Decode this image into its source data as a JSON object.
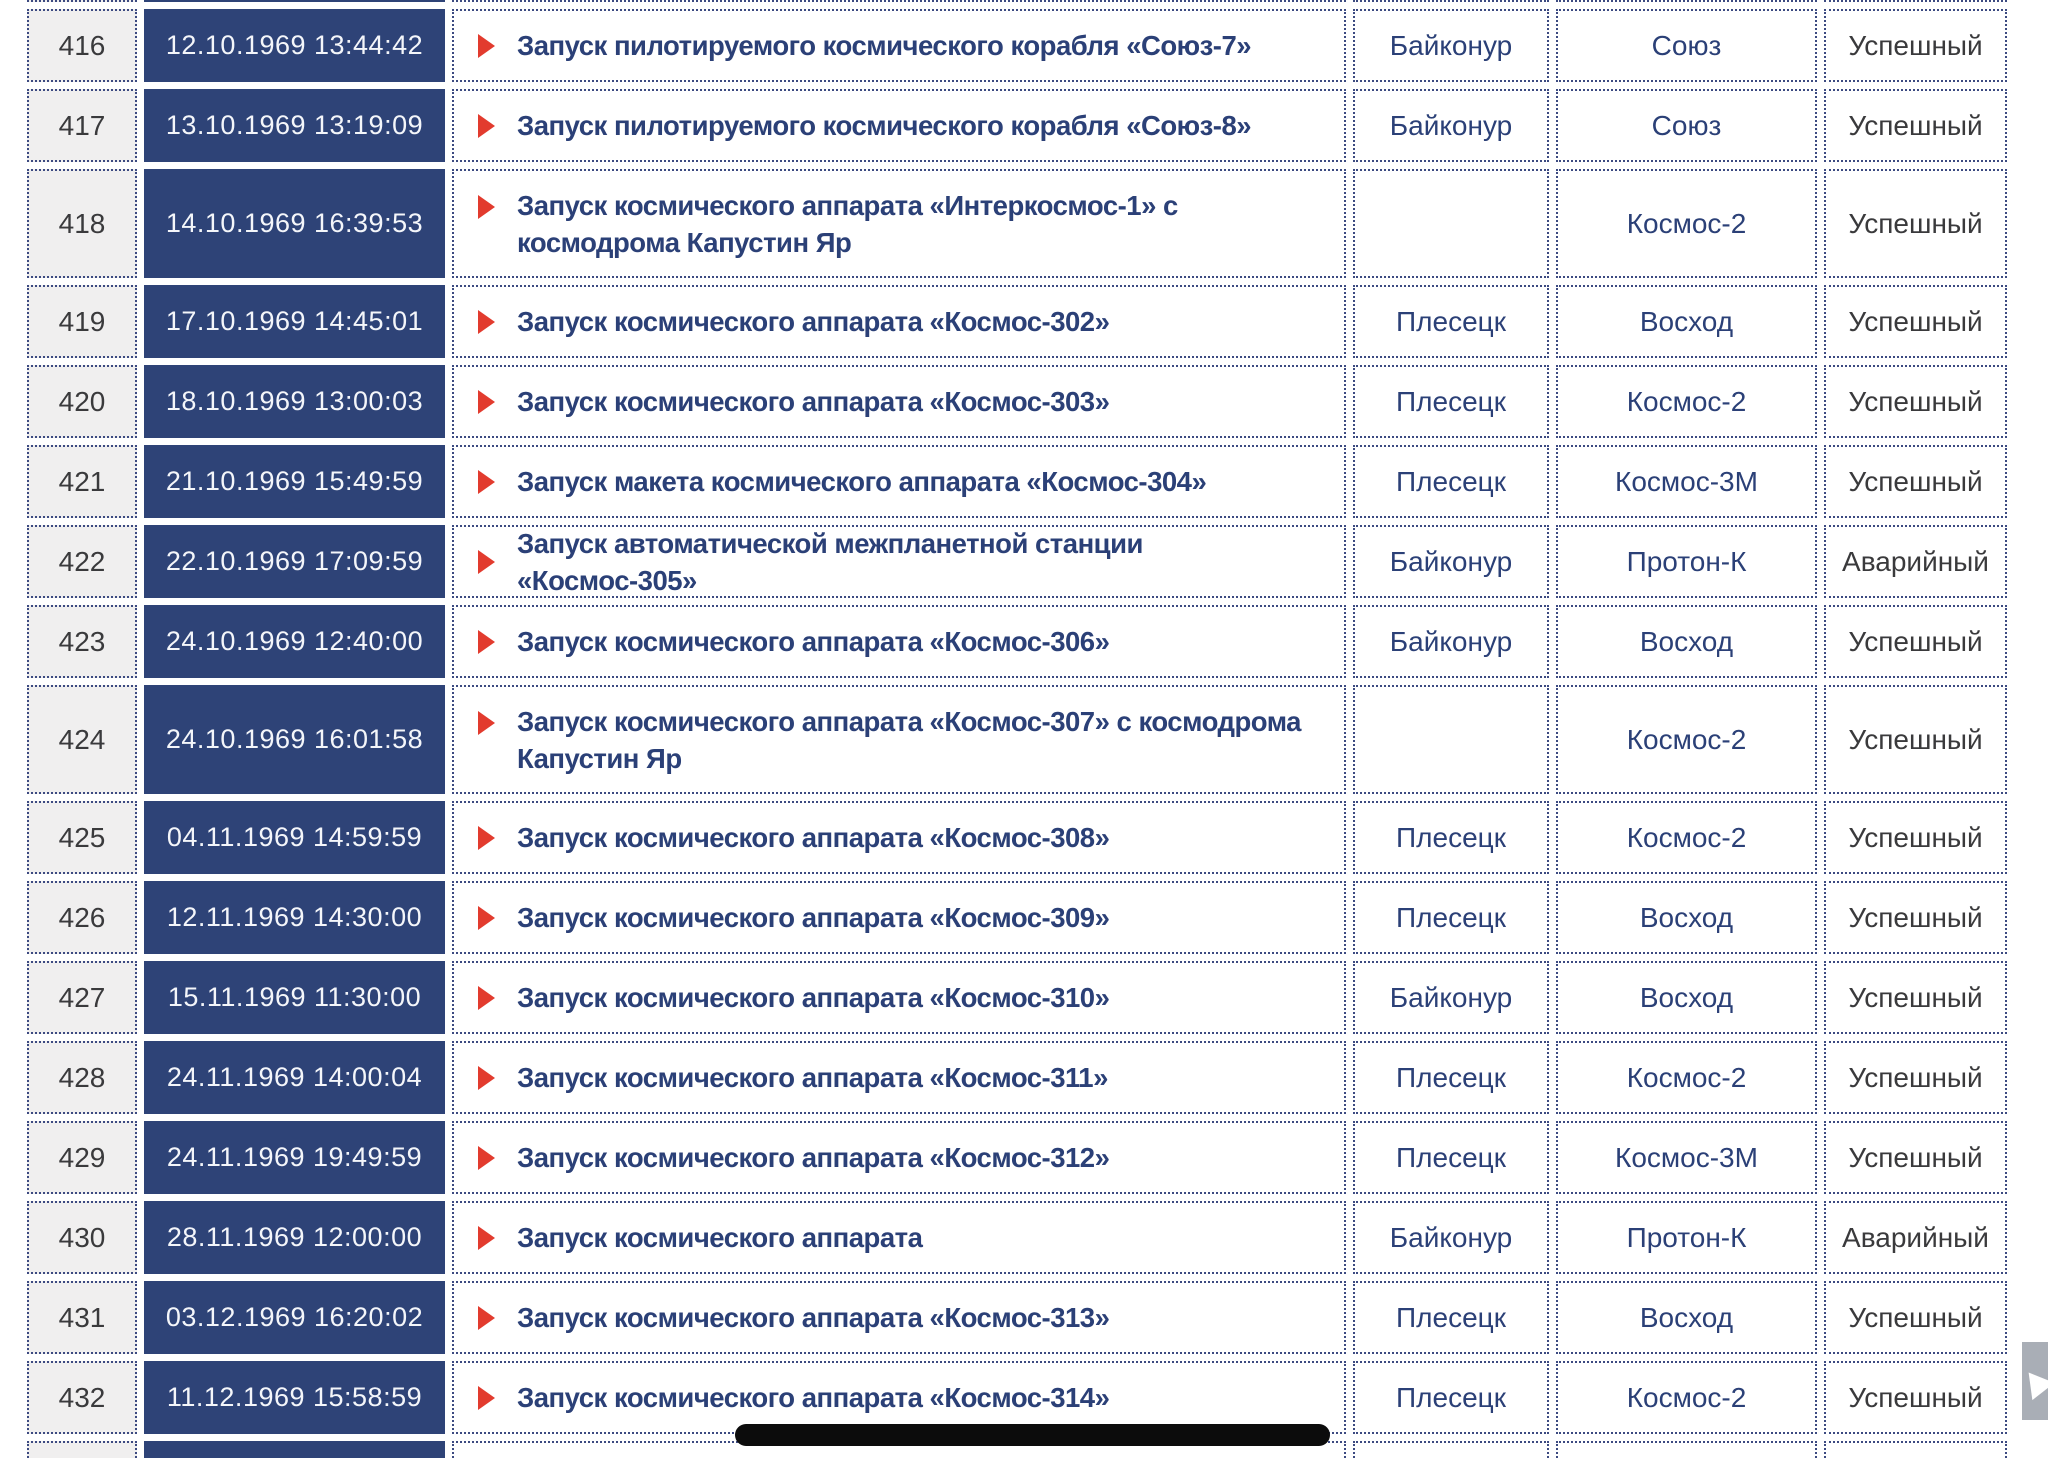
{
  "page": {
    "background": "#ffffff"
  },
  "colors": {
    "date_cell_bg": "#2e4377",
    "date_text": "#f4f6fa",
    "link_text": "#2b4077",
    "dark_text": "#3a3a3c",
    "number_cell_bg": "#f0efef",
    "grid_dotted_border": "#3c4a81",
    "marker_red": "#e23b2e",
    "scrollbar_thumb_black": "#0c0c0c",
    "scroll_top_gray": "#a9aeb6"
  },
  "icons": {
    "row_marker": "play-triangle-icon",
    "scroll_top": "up-arrow-icon"
  },
  "table": {
    "rows": [
      {
        "num": "",
        "datetime": "",
        "description": "",
        "site": "",
        "rocket": "",
        "status": "",
        "tall": false,
        "partial": true
      },
      {
        "num": "416",
        "datetime": "12.10.1969 13:44:42",
        "description": "Запуск пилотируемого космического корабля «Союз-7»",
        "site": "Байконур",
        "rocket": "Союз",
        "status": "Успешный",
        "tall": false
      },
      {
        "num": "417",
        "datetime": "13.10.1969 13:19:09",
        "description": "Запуск пилотируемого космического корабля «Союз-8»",
        "site": "Байконур",
        "rocket": "Союз",
        "status": "Успешный",
        "tall": false
      },
      {
        "num": "418",
        "datetime": "14.10.1969 16:39:53",
        "description": "Запуск космического аппарата «Интеркосмос-1» с космодрома Капустин Яр",
        "site": "",
        "rocket": "Космос-2",
        "status": "Успешный",
        "tall": true
      },
      {
        "num": "419",
        "datetime": "17.10.1969 14:45:01",
        "description": "Запуск космического аппарата «Космос-302»",
        "site": "Плесецк",
        "rocket": "Восход",
        "status": "Успешный",
        "tall": false
      },
      {
        "num": "420",
        "datetime": "18.10.1969 13:00:03",
        "description": "Запуск космического аппарата «Космос-303»",
        "site": "Плесецк",
        "rocket": "Космос-2",
        "status": "Успешный",
        "tall": false
      },
      {
        "num": "421",
        "datetime": "21.10.1969 15:49:59",
        "description": "Запуск макета космического аппарата «Космос-304»",
        "site": "Плесецк",
        "rocket": "Космос-3М",
        "status": "Успешный",
        "tall": false
      },
      {
        "num": "422",
        "datetime": "22.10.1969 17:09:59",
        "description": "Запуск автоматической межпланетной станции «Космос-305»",
        "site": "Байконур",
        "rocket": "Протон-К",
        "status": "Аварийный",
        "tall": false
      },
      {
        "num": "423",
        "datetime": "24.10.1969 12:40:00",
        "description": "Запуск космического аппарата «Космос-306»",
        "site": "Байконур",
        "rocket": "Восход",
        "status": "Успешный",
        "tall": false
      },
      {
        "num": "424",
        "datetime": "24.10.1969 16:01:58",
        "description": "Запуск космического аппарата «Космос-307» с космодрома Капустин Яр",
        "site": "",
        "rocket": "Космос-2",
        "status": "Успешный",
        "tall": true
      },
      {
        "num": "425",
        "datetime": "04.11.1969 14:59:59",
        "description": "Запуск космического аппарата «Космос-308»",
        "site": "Плесецк",
        "rocket": "Космос-2",
        "status": "Успешный",
        "tall": false
      },
      {
        "num": "426",
        "datetime": "12.11.1969 14:30:00",
        "description": "Запуск космического аппарата «Космос-309»",
        "site": "Плесецк",
        "rocket": "Восход",
        "status": "Успешный",
        "tall": false
      },
      {
        "num": "427",
        "datetime": "15.11.1969 11:30:00",
        "description": "Запуск космического аппарата «Космос-310»",
        "site": "Байконур",
        "rocket": "Восход",
        "status": "Успешный",
        "tall": false
      },
      {
        "num": "428",
        "datetime": "24.11.1969 14:00:04",
        "description": "Запуск космического аппарата «Космос-311»",
        "site": "Плесецк",
        "rocket": "Космос-2",
        "status": "Успешный",
        "tall": false
      },
      {
        "num": "429",
        "datetime": "24.11.1969 19:49:59",
        "description": "Запуск космического аппарата «Космос-312»",
        "site": "Плесецк",
        "rocket": "Космос-3М",
        "status": "Успешный",
        "tall": false
      },
      {
        "num": "430",
        "datetime": "28.11.1969 12:00:00",
        "description": "Запуск космического аппарата",
        "site": "Байконур",
        "rocket": "Протон-К",
        "status": "Аварийный",
        "tall": false
      },
      {
        "num": "431",
        "datetime": "03.12.1969 16:20:02",
        "description": "Запуск космического аппарата «Космос-313»",
        "site": "Плесецк",
        "rocket": "Восход",
        "status": "Успешный",
        "tall": false
      },
      {
        "num": "432",
        "datetime": "11.12.1969 15:58:59",
        "description": "Запуск космического аппарата «Космос-314»",
        "site": "Плесецк",
        "rocket": "Космос-2",
        "status": "Успешный",
        "tall": false
      },
      {
        "num": "",
        "datetime": "",
        "description": "",
        "site": "",
        "rocket": "",
        "status": "",
        "tall": false,
        "partial": true
      }
    ]
  }
}
